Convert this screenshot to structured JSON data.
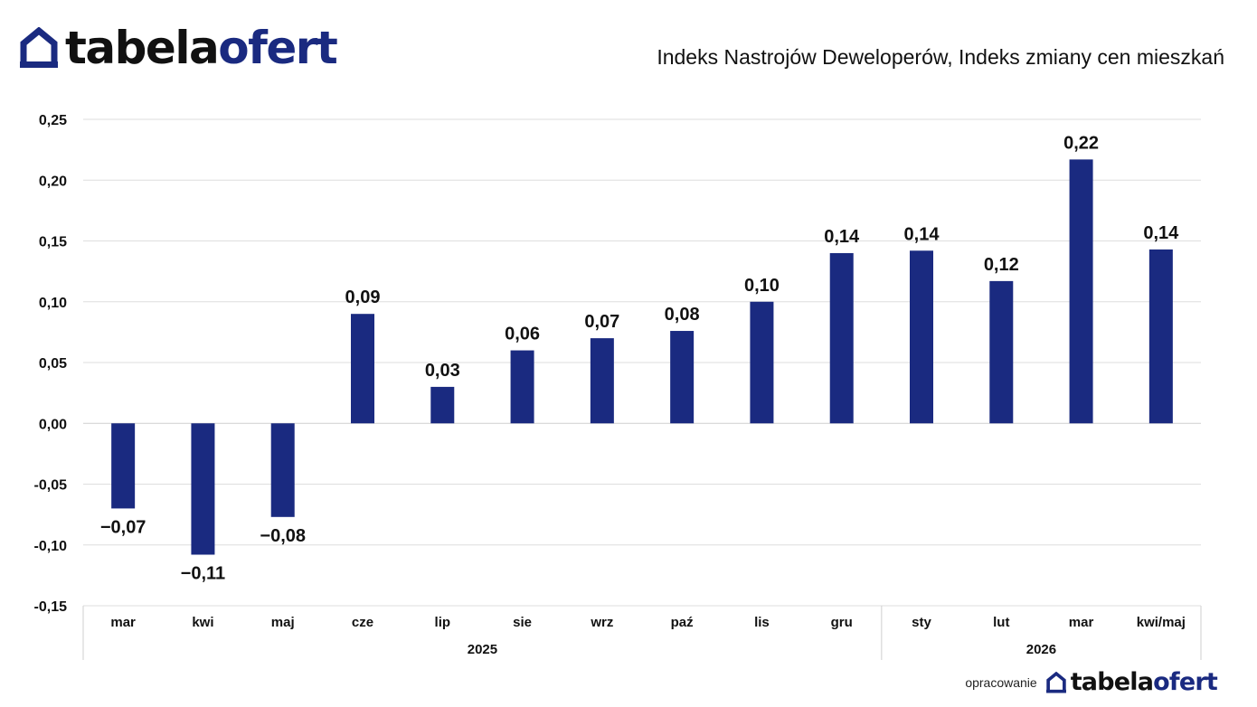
{
  "header": {
    "logo_part1": "tabela",
    "logo_part2": "ofert",
    "title": "Indeks Nastrojów Deweloperów, Indeks zmiany cen mieszkań"
  },
  "footer": {
    "label": "opracowanie",
    "logo_part1": "tabela",
    "logo_part2": "ofert"
  },
  "colors": {
    "bar": "#1a2a80",
    "brand": "#1a2a80"
  },
  "chart_data": {
    "type": "bar",
    "categories": [
      "mar",
      "kwi",
      "maj",
      "cze",
      "lip",
      "sie",
      "wrz",
      "paź",
      "lis",
      "gru",
      "sty",
      "lut",
      "mar",
      "kwi/maj"
    ],
    "values": [
      -0.07,
      -0.108,
      -0.077,
      0.09,
      0.03,
      0.06,
      0.07,
      0.076,
      0.1,
      0.14,
      0.142,
      0.117,
      0.217,
      0.143
    ],
    "value_labels": [
      "−0,07",
      "−0,11",
      "−0,08",
      "0,09",
      "0,03",
      "0,06",
      "0,07",
      "0,08",
      "0,10",
      "0,14",
      "0,14",
      "0,12",
      "0,22",
      "0,14"
    ],
    "groups": [
      {
        "label": "2025",
        "count": 10
      },
      {
        "label": "2026",
        "count": 4
      }
    ],
    "yticks": [
      0.25,
      0.2,
      0.15,
      0.1,
      0.05,
      0.0,
      -0.05,
      -0.1,
      -0.15
    ],
    "ytick_labels": [
      "0,25",
      "0,20",
      "0,15",
      "0,10",
      "0,05",
      "0,00",
      "-0,05",
      "-0,10",
      "-0,15"
    ],
    "ylim": [
      -0.15,
      0.25
    ],
    "grid": true,
    "title": "",
    "xlabel": "",
    "ylabel": ""
  }
}
